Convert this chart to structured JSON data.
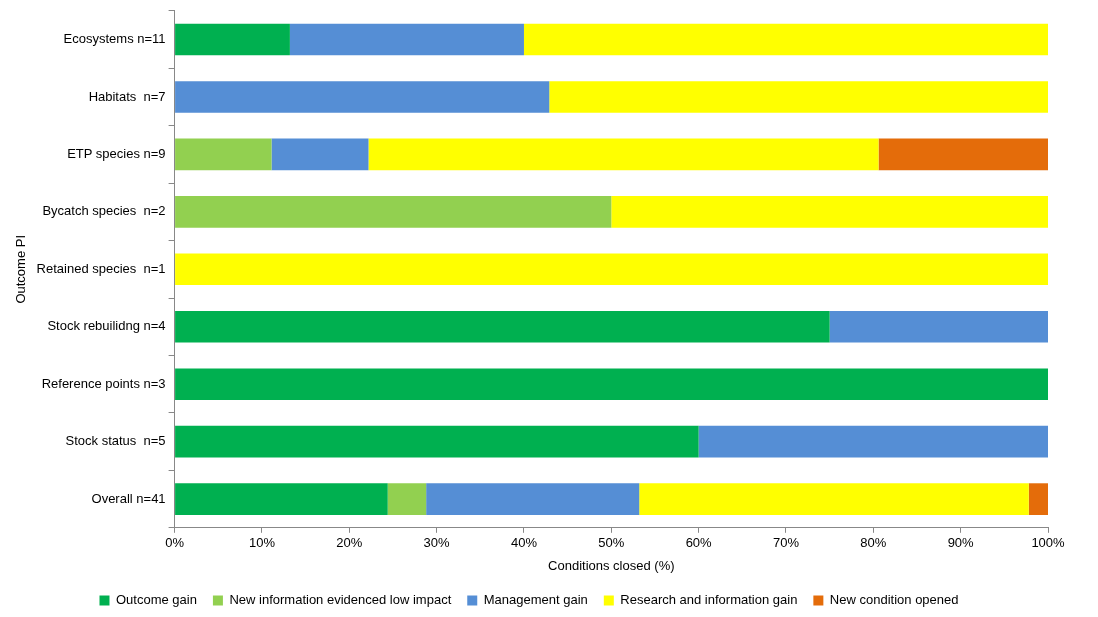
{
  "chart_data": {
    "type": "bar",
    "orientation": "horizontal",
    "stacked": true,
    "xlabel": "Conditions closed (%)",
    "ylabel": "Outcome PI",
    "categories": [
      "Ecosystems n=11",
      "Habitats  n=7",
      "ETP species n=9",
      "Bycatch species  n=2",
      "Retained species  n=1",
      "Stock rebuilidng n=4",
      "Reference points n=3",
      "Stock status  n=5",
      "Overall n=41"
    ],
    "series": [
      {
        "name": "Outcome gain",
        "color": "#00b050",
        "values": [
          13.2,
          0,
          0,
          0,
          0,
          75,
          100,
          60,
          24.4
        ]
      },
      {
        "name": "New information evidenced low impact",
        "color": "#92d050",
        "values": [
          0,
          0,
          11.1,
          50,
          0,
          0,
          0,
          0,
          4.4
        ]
      },
      {
        "name": "Management gain",
        "color": "#558ed5",
        "values": [
          26.8,
          42.9,
          11.1,
          0,
          0,
          25,
          0,
          40,
          24.4
        ]
      },
      {
        "name": "Research and information gain",
        "color": "#ffff00",
        "values": [
          60,
          57.1,
          58.4,
          50,
          100,
          0,
          0,
          0,
          44.6
        ]
      },
      {
        "name": "New condition opened",
        "color": "#e46c0a",
        "values": [
          0,
          0,
          19.4,
          0,
          0,
          0,
          0,
          0,
          2.2
        ]
      }
    ],
    "xlim": [
      0,
      100
    ],
    "xticks": [
      {
        "value": 0,
        "label": "0%"
      },
      {
        "value": 10,
        "label": "10%"
      },
      {
        "value": 20,
        "label": "20%"
      },
      {
        "value": 30,
        "label": "30%"
      },
      {
        "value": 40,
        "label": "40%"
      },
      {
        "value": 50,
        "label": "50%"
      },
      {
        "value": 60,
        "label": "60%"
      },
      {
        "value": 70,
        "label": "70%"
      },
      {
        "value": 80,
        "label": "80%"
      },
      {
        "value": 90,
        "label": "90%"
      },
      {
        "value": 100,
        "label": "100%"
      }
    ],
    "grid": false,
    "legend": "bottom"
  }
}
